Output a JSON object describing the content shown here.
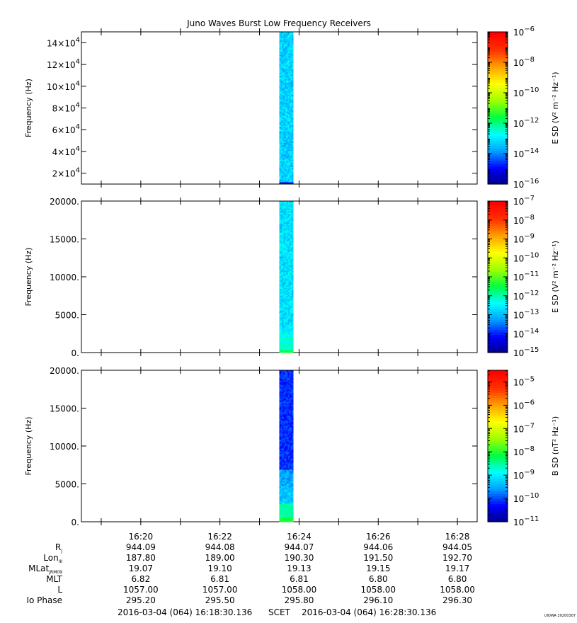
{
  "title": "Juno Waves Burst Low Frequency Receivers",
  "watermark": "UIOWA 20200307",
  "time_range": {
    "start": "2016-03-04 (064) 16:18:30.136",
    "mid": "SCET",
    "end": "2016-03-04 (064) 16:28:30.136"
  },
  "x_tick_labels": [
    "16:20",
    "16:22",
    "16:24",
    "16:26",
    "16:28"
  ],
  "ephemeris": {
    "rows": [
      {
        "label": "R",
        "sub": "J",
        "values": [
          "944.09",
          "944.08",
          "944.07",
          "944.06",
          "944.05"
        ]
      },
      {
        "label": "Lon",
        "sub": "III",
        "values": [
          "187.80",
          "189.00",
          "190.30",
          "191.50",
          "192.70"
        ]
      },
      {
        "label": "MLat",
        "sub": "JRM09",
        "values": [
          "19.07",
          "19.10",
          "19.13",
          "19.15",
          "19.17"
        ]
      },
      {
        "label": "MLT",
        "sub": "",
        "values": [
          "6.82",
          "6.81",
          "6.81",
          "6.80",
          "6.80"
        ]
      },
      {
        "label": "L",
        "sub": "",
        "values": [
          "1057.00",
          "1057.00",
          "1058.00",
          "1058.00",
          "1058.00"
        ]
      },
      {
        "label": "Io Phase",
        "sub": "",
        "values": [
          "295.20",
          "295.50",
          "295.80",
          "296.10",
          "296.30"
        ]
      }
    ]
  },
  "colormap": [
    "#000080",
    "#0000ff",
    "#00a0ff",
    "#00ffff",
    "#00ff40",
    "#a0ff00",
    "#ffff00",
    "#ffa000",
    "#ff3000",
    "#ff0000"
  ],
  "chart_data": [
    {
      "type": "heatmap",
      "title": "Juno Waves Burst Low Frequency Receivers",
      "ylabel": "Frequency (Hz)",
      "ylim": [
        10000,
        150000
      ],
      "y_ticks": [
        {
          "value": 20000,
          "mant": "2",
          "exp": "4"
        },
        {
          "value": 40000,
          "mant": "4",
          "exp": "4"
        },
        {
          "value": 60000,
          "mant": "6",
          "exp": "4"
        },
        {
          "value": 80000,
          "mant": "8",
          "exp": "4"
        },
        {
          "value": 100000,
          "mant": "10",
          "exp": "4"
        },
        {
          "value": 120000,
          "mant": "12",
          "exp": "4"
        },
        {
          "value": 140000,
          "mant": "14",
          "exp": "4"
        }
      ],
      "burst": {
        "start": "16:23:30",
        "end": "16:23:50",
        "dominant_level": 0.28,
        "low_band_level": 0.1
      },
      "colorbar": {
        "label": "E SD",
        "unit": "(V² m⁻² Hz⁻¹)",
        "exponents": [
          -6,
          -8,
          -10,
          -12,
          -14,
          -16
        ],
        "range_exp": [
          -16,
          -6
        ],
        "grid": false
      }
    },
    {
      "type": "heatmap",
      "ylabel": "Frequency (Hz)",
      "ylim": [
        0,
        20000
      ],
      "y_ticks": [
        {
          "value": 0,
          "label": "0."
        },
        {
          "value": 5000,
          "label": "5000."
        },
        {
          "value": 10000,
          "label": "10000."
        },
        {
          "value": 15000,
          "label": "15000."
        },
        {
          "value": 20000,
          "label": "20000."
        }
      ],
      "burst": {
        "start": "16:23:30",
        "end": "16:23:50",
        "dominant_level": 0.3,
        "low_band_level": 0.45
      },
      "colorbar": {
        "label": "E SD",
        "unit": "(V² m⁻² Hz⁻¹)",
        "exponents": [
          -7,
          -8,
          -9,
          -10,
          -11,
          -12,
          -13,
          -14,
          -15
        ],
        "range_exp": [
          -15,
          -7
        ],
        "grid": false
      }
    },
    {
      "type": "heatmap",
      "ylabel": "Frequency (Hz)",
      "ylim": [
        0,
        20000
      ],
      "y_ticks": [
        {
          "value": 0,
          "label": "0."
        },
        {
          "value": 5000,
          "label": "5000."
        },
        {
          "value": 10000,
          "label": "10000."
        },
        {
          "value": 15000,
          "label": "15000."
        },
        {
          "value": 20000,
          "label": "20000."
        }
      ],
      "burst": {
        "start": "16:23:30",
        "end": "16:23:50",
        "dominant_level": 0.12,
        "low_band_level": 0.45
      },
      "colorbar": {
        "label": "B SD",
        "unit": "(nT² Hz⁻¹)",
        "exponents": [
          -5,
          -6,
          -7,
          -8,
          -9,
          -10,
          -11
        ],
        "range_exp": [
          -11,
          -4.5
        ],
        "grid": false
      }
    }
  ],
  "x_axis": {
    "start": "16:18:30",
    "end": "16:28:30",
    "major_ticks": [
      "16:19",
      "16:20",
      "16:21",
      "16:22",
      "16:23",
      "16:24",
      "16:25",
      "16:26",
      "16:27",
      "16:28"
    ]
  }
}
